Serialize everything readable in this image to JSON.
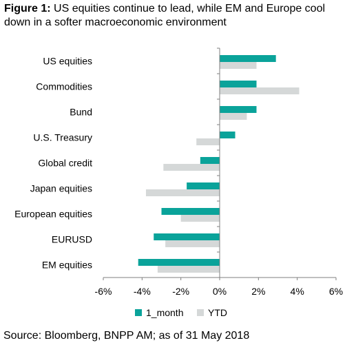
{
  "figure": {
    "label": "Figure 1:",
    "title": "US equities continue to lead, while EM and Europe cool down in a softer macroeconomic environment",
    "source": "Source: Bloomberg, BNPP AM; as of 31 May 2018"
  },
  "chart_data": {
    "type": "bar",
    "orientation": "horizontal",
    "categories": [
      "US equities",
      "Commodities",
      "Bund",
      "U.S. Treasury",
      "Global credit",
      "Japan equities",
      "European equities",
      "EURUSD",
      "EM equities"
    ],
    "series": [
      {
        "name": "1_month",
        "color": "#0aa39a",
        "values": [
          2.9,
          1.9,
          1.9,
          0.8,
          -1.0,
          -1.7,
          -3.0,
          -3.4,
          -4.2
        ]
      },
      {
        "name": "YTD",
        "color": "#d5d8d8",
        "values": [
          1.9,
          4.1,
          1.4,
          -1.2,
          -2.9,
          -3.8,
          -2.0,
          -2.8,
          -3.2
        ]
      }
    ],
    "xlim": [
      -6,
      6
    ],
    "xticks": [
      "-6%",
      "-4%",
      "-2%",
      "0%",
      "2%",
      "4%",
      "6%"
    ],
    "grid": false,
    "legend": "bottom"
  }
}
